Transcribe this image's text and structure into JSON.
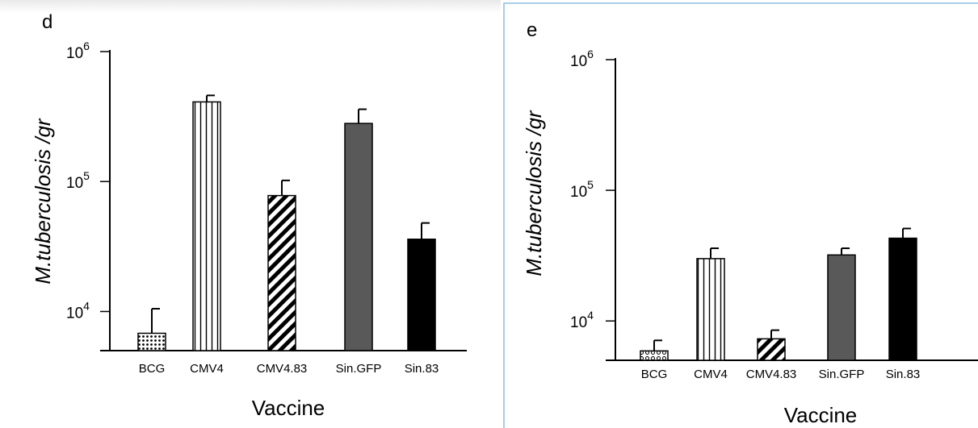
{
  "colors": {
    "cmv483_hatch": "#000000",
    "sin_gfp": "#595959",
    "sin83": "#000000",
    "frame_accent": "#a9cde9"
  },
  "chart_data": [
    {
      "panel": "d",
      "type": "bar",
      "y_scale": "log",
      "ylim": [
        5000,
        1000000
      ],
      "yticks": [
        {
          "base": "10",
          "exp": "4",
          "value": 10000
        },
        {
          "base": "10",
          "exp": "5",
          "value": 100000
        },
        {
          "base": "10",
          "exp": "6",
          "value": 1000000
        }
      ],
      "xlabel": "Vaccine",
      "ylabel": "M.tuberculosis /gr",
      "categories": [
        "BCG",
        "CMV4",
        "CMV4.83",
        "Sin.GFP",
        "Sin.83"
      ],
      "values": [
        6800,
        410000,
        78000,
        280000,
        36000
      ],
      "error_upper": [
        10500,
        460000,
        102000,
        360000,
        48000
      ],
      "patterns": [
        "dots",
        "vertical-stripes",
        "diagonal-stripes",
        "solid-gray",
        "solid-black"
      ]
    },
    {
      "panel": "e",
      "type": "bar",
      "y_scale": "log",
      "ylim": [
        5000,
        1000000
      ],
      "yticks": [
        {
          "base": "10",
          "exp": "4",
          "value": 10000
        },
        {
          "base": "10",
          "exp": "5",
          "value": 100000
        },
        {
          "base": "10",
          "exp": "6",
          "value": 1000000
        }
      ],
      "xlabel": "Vaccine",
      "ylabel": "M.tuberculosis /gr",
      "categories": [
        "BCG",
        "CMV4",
        "CMV4.83",
        "Sin.GFP",
        "Sin.83"
      ],
      "values": [
        5900,
        30000,
        7300,
        32000,
        43000
      ],
      "error_upper": [
        7100,
        36000,
        8500,
        36000,
        51000
      ],
      "patterns": [
        "circles",
        "vertical-stripes",
        "diagonal-stripes",
        "solid-gray",
        "solid-black"
      ]
    }
  ]
}
